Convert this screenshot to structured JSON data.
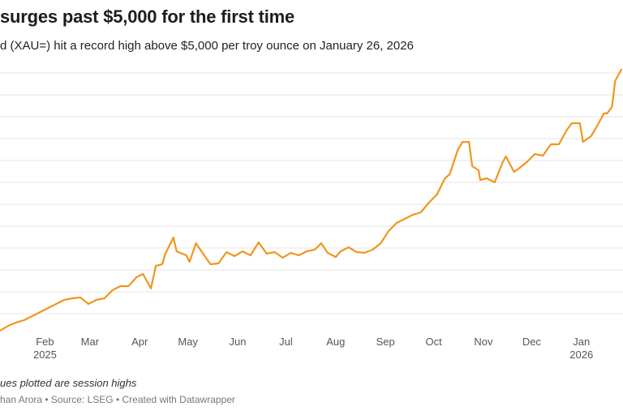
{
  "header": {
    "title": "surges past $5,000 for the first time",
    "subtitle": "d (XAU=) hit a record high above $5,000 per troy ounce on January 26, 2026"
  },
  "footer": {
    "note": "ues plotted are session highs",
    "credit": "han Arora • Source: LSEG • Created with Datawrapper"
  },
  "chart_data": {
    "type": "line",
    "line_color": "#f0961e",
    "grid_color": "#e6e6e6",
    "grid": true,
    "yticks": [
      2800,
      3000,
      3200,
      3400,
      3600,
      3800,
      4000,
      4200,
      4400,
      4600,
      4800,
      5000
    ],
    "ylim": [
      2600,
      5060
    ],
    "xticks": [
      {
        "date": "2025-02-01",
        "label": "Feb",
        "year": "2025"
      },
      {
        "date": "2025-03-01",
        "label": "Mar"
      },
      {
        "date": "2025-04-01",
        "label": "Apr"
      },
      {
        "date": "2025-05-01",
        "label": "May"
      },
      {
        "date": "2025-06-01",
        "label": "Jun"
      },
      {
        "date": "2025-07-01",
        "label": "Jul"
      },
      {
        "date": "2025-08-01",
        "label": "Aug"
      },
      {
        "date": "2025-09-01",
        "label": "Sep"
      },
      {
        "date": "2025-10-01",
        "label": "Oct"
      },
      {
        "date": "2025-11-01",
        "label": "Nov"
      },
      {
        "date": "2025-12-01",
        "label": "Dec"
      },
      {
        "date": "2026-01-01",
        "label": "Jan",
        "year": "2026"
      }
    ],
    "x": [
      "2025-01-04",
      "2025-01-09",
      "2025-01-14",
      "2025-01-19",
      "2025-01-24",
      "2025-01-29",
      "2025-02-03",
      "2025-02-08",
      "2025-02-13",
      "2025-02-18",
      "2025-02-23",
      "2025-02-28",
      "2025-03-05",
      "2025-03-10",
      "2025-03-15",
      "2025-03-20",
      "2025-03-25",
      "2025-03-30",
      "2025-04-03",
      "2025-04-08",
      "2025-04-11",
      "2025-04-15",
      "2025-04-17",
      "2025-04-22",
      "2025-04-24",
      "2025-04-30",
      "2025-05-02",
      "2025-05-06",
      "2025-05-10",
      "2025-05-15",
      "2025-05-20",
      "2025-05-25",
      "2025-05-30",
      "2025-06-04",
      "2025-06-09",
      "2025-06-14",
      "2025-06-19",
      "2025-06-24",
      "2025-06-29",
      "2025-07-04",
      "2025-07-09",
      "2025-07-14",
      "2025-07-19",
      "2025-07-23",
      "2025-07-27",
      "2025-08-01",
      "2025-08-04",
      "2025-08-09",
      "2025-08-14",
      "2025-08-19",
      "2025-08-24",
      "2025-08-29",
      "2025-09-03",
      "2025-09-08",
      "2025-09-13",
      "2025-09-18",
      "2025-09-23",
      "2025-09-28",
      "2025-10-03",
      "2025-10-08",
      "2025-10-11",
      "2025-10-16",
      "2025-10-19",
      "2025-10-23",
      "2025-10-25",
      "2025-10-29",
      "2025-10-30",
      "2025-11-03",
      "2025-11-08",
      "2025-11-13",
      "2025-11-15",
      "2025-11-20",
      "2025-11-23",
      "2025-11-28",
      "2025-12-03",
      "2025-12-08",
      "2025-12-13",
      "2025-12-18",
      "2025-12-23",
      "2025-12-26",
      "2025-12-31",
      "2026-01-02",
      "2026-01-07",
      "2026-01-10",
      "2026-01-15",
      "2026-01-17",
      "2026-01-20",
      "2026-01-22",
      "2026-01-26"
    ],
    "values": [
      2644,
      2689,
      2719,
      2741,
      2778,
      2815,
      2852,
      2889,
      2926,
      2941,
      2948,
      2889,
      2926,
      2941,
      3015,
      3052,
      3052,
      3133,
      3163,
      3030,
      3237,
      3252,
      3348,
      3496,
      3370,
      3333,
      3274,
      3444,
      3356,
      3252,
      3259,
      3363,
      3326,
      3370,
      3333,
      3452,
      3348,
      3363,
      3311,
      3356,
      3333,
      3370,
      3385,
      3444,
      3356,
      3318,
      3370,
      3407,
      3363,
      3356,
      3385,
      3444,
      3556,
      3630,
      3667,
      3704,
      3726,
      3815,
      3889,
      4037,
      4074,
      4296,
      4370,
      4370,
      4148,
      4111,
      4022,
      4037,
      4000,
      4185,
      4237,
      4096,
      4126,
      4185,
      4259,
      4244,
      4348,
      4348,
      4481,
      4541,
      4541,
      4370,
      4422,
      4496,
      4630,
      4630,
      4689,
      4926,
      5037
    ]
  }
}
